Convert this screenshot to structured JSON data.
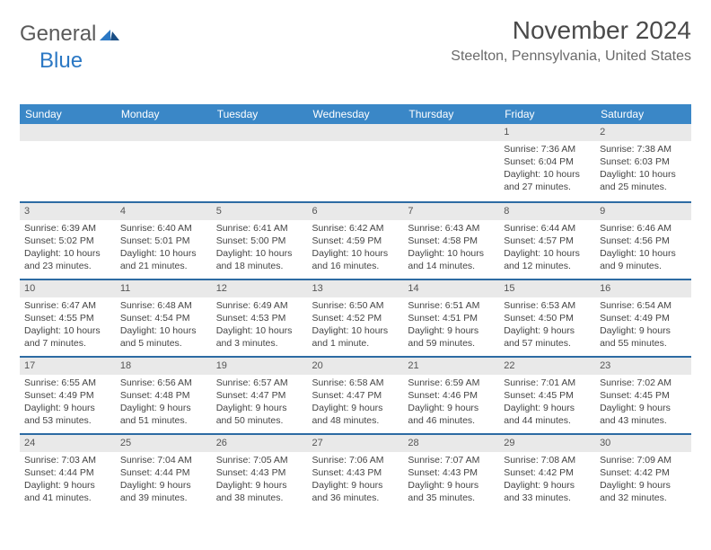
{
  "logo": {
    "general": "General",
    "blue": "Blue"
  },
  "title": "November 2024",
  "location": "Steelton, Pennsylvania, United States",
  "colors": {
    "header_bg": "#3a87c7",
    "header_text": "#ffffff",
    "date_bar_bg": "#e9e9e9",
    "date_bar_border": "#2d6ba3",
    "logo_general": "#5a5a5a",
    "logo_blue": "#2b78c4",
    "text": "#444444"
  },
  "typography": {
    "title_fontsize": 28,
    "location_fontsize": 16,
    "weekday_fontsize": 12,
    "cell_fontsize": 10.5
  },
  "weekdays": [
    "Sunday",
    "Monday",
    "Tuesday",
    "Wednesday",
    "Thursday",
    "Friday",
    "Saturday"
  ],
  "grid": [
    [
      {
        "date": ""
      },
      {
        "date": ""
      },
      {
        "date": ""
      },
      {
        "date": ""
      },
      {
        "date": ""
      },
      {
        "date": "1",
        "sunrise": "Sunrise: 7:36 AM",
        "sunset": "Sunset: 6:04 PM",
        "daylight": "Daylight: 10 hours and 27 minutes."
      },
      {
        "date": "2",
        "sunrise": "Sunrise: 7:38 AM",
        "sunset": "Sunset: 6:03 PM",
        "daylight": "Daylight: 10 hours and 25 minutes."
      }
    ],
    [
      {
        "date": "3",
        "sunrise": "Sunrise: 6:39 AM",
        "sunset": "Sunset: 5:02 PM",
        "daylight": "Daylight: 10 hours and 23 minutes."
      },
      {
        "date": "4",
        "sunrise": "Sunrise: 6:40 AM",
        "sunset": "Sunset: 5:01 PM",
        "daylight": "Daylight: 10 hours and 21 minutes."
      },
      {
        "date": "5",
        "sunrise": "Sunrise: 6:41 AM",
        "sunset": "Sunset: 5:00 PM",
        "daylight": "Daylight: 10 hours and 18 minutes."
      },
      {
        "date": "6",
        "sunrise": "Sunrise: 6:42 AM",
        "sunset": "Sunset: 4:59 PM",
        "daylight": "Daylight: 10 hours and 16 minutes."
      },
      {
        "date": "7",
        "sunrise": "Sunrise: 6:43 AM",
        "sunset": "Sunset: 4:58 PM",
        "daylight": "Daylight: 10 hours and 14 minutes."
      },
      {
        "date": "8",
        "sunrise": "Sunrise: 6:44 AM",
        "sunset": "Sunset: 4:57 PM",
        "daylight": "Daylight: 10 hours and 12 minutes."
      },
      {
        "date": "9",
        "sunrise": "Sunrise: 6:46 AM",
        "sunset": "Sunset: 4:56 PM",
        "daylight": "Daylight: 10 hours and 9 minutes."
      }
    ],
    [
      {
        "date": "10",
        "sunrise": "Sunrise: 6:47 AM",
        "sunset": "Sunset: 4:55 PM",
        "daylight": "Daylight: 10 hours and 7 minutes."
      },
      {
        "date": "11",
        "sunrise": "Sunrise: 6:48 AM",
        "sunset": "Sunset: 4:54 PM",
        "daylight": "Daylight: 10 hours and 5 minutes."
      },
      {
        "date": "12",
        "sunrise": "Sunrise: 6:49 AM",
        "sunset": "Sunset: 4:53 PM",
        "daylight": "Daylight: 10 hours and 3 minutes."
      },
      {
        "date": "13",
        "sunrise": "Sunrise: 6:50 AM",
        "sunset": "Sunset: 4:52 PM",
        "daylight": "Daylight: 10 hours and 1 minute."
      },
      {
        "date": "14",
        "sunrise": "Sunrise: 6:51 AM",
        "sunset": "Sunset: 4:51 PM",
        "daylight": "Daylight: 9 hours and 59 minutes."
      },
      {
        "date": "15",
        "sunrise": "Sunrise: 6:53 AM",
        "sunset": "Sunset: 4:50 PM",
        "daylight": "Daylight: 9 hours and 57 minutes."
      },
      {
        "date": "16",
        "sunrise": "Sunrise: 6:54 AM",
        "sunset": "Sunset: 4:49 PM",
        "daylight": "Daylight: 9 hours and 55 minutes."
      }
    ],
    [
      {
        "date": "17",
        "sunrise": "Sunrise: 6:55 AM",
        "sunset": "Sunset: 4:49 PM",
        "daylight": "Daylight: 9 hours and 53 minutes."
      },
      {
        "date": "18",
        "sunrise": "Sunrise: 6:56 AM",
        "sunset": "Sunset: 4:48 PM",
        "daylight": "Daylight: 9 hours and 51 minutes."
      },
      {
        "date": "19",
        "sunrise": "Sunrise: 6:57 AM",
        "sunset": "Sunset: 4:47 PM",
        "daylight": "Daylight: 9 hours and 50 minutes."
      },
      {
        "date": "20",
        "sunrise": "Sunrise: 6:58 AM",
        "sunset": "Sunset: 4:47 PM",
        "daylight": "Daylight: 9 hours and 48 minutes."
      },
      {
        "date": "21",
        "sunrise": "Sunrise: 6:59 AM",
        "sunset": "Sunset: 4:46 PM",
        "daylight": "Daylight: 9 hours and 46 minutes."
      },
      {
        "date": "22",
        "sunrise": "Sunrise: 7:01 AM",
        "sunset": "Sunset: 4:45 PM",
        "daylight": "Daylight: 9 hours and 44 minutes."
      },
      {
        "date": "23",
        "sunrise": "Sunrise: 7:02 AM",
        "sunset": "Sunset: 4:45 PM",
        "daylight": "Daylight: 9 hours and 43 minutes."
      }
    ],
    [
      {
        "date": "24",
        "sunrise": "Sunrise: 7:03 AM",
        "sunset": "Sunset: 4:44 PM",
        "daylight": "Daylight: 9 hours and 41 minutes."
      },
      {
        "date": "25",
        "sunrise": "Sunrise: 7:04 AM",
        "sunset": "Sunset: 4:44 PM",
        "daylight": "Daylight: 9 hours and 39 minutes."
      },
      {
        "date": "26",
        "sunrise": "Sunrise: 7:05 AM",
        "sunset": "Sunset: 4:43 PM",
        "daylight": "Daylight: 9 hours and 38 minutes."
      },
      {
        "date": "27",
        "sunrise": "Sunrise: 7:06 AM",
        "sunset": "Sunset: 4:43 PM",
        "daylight": "Daylight: 9 hours and 36 minutes."
      },
      {
        "date": "28",
        "sunrise": "Sunrise: 7:07 AM",
        "sunset": "Sunset: 4:43 PM",
        "daylight": "Daylight: 9 hours and 35 minutes."
      },
      {
        "date": "29",
        "sunrise": "Sunrise: 7:08 AM",
        "sunset": "Sunset: 4:42 PM",
        "daylight": "Daylight: 9 hours and 33 minutes."
      },
      {
        "date": "30",
        "sunrise": "Sunrise: 7:09 AM",
        "sunset": "Sunset: 4:42 PM",
        "daylight": "Daylight: 9 hours and 32 minutes."
      }
    ]
  ]
}
